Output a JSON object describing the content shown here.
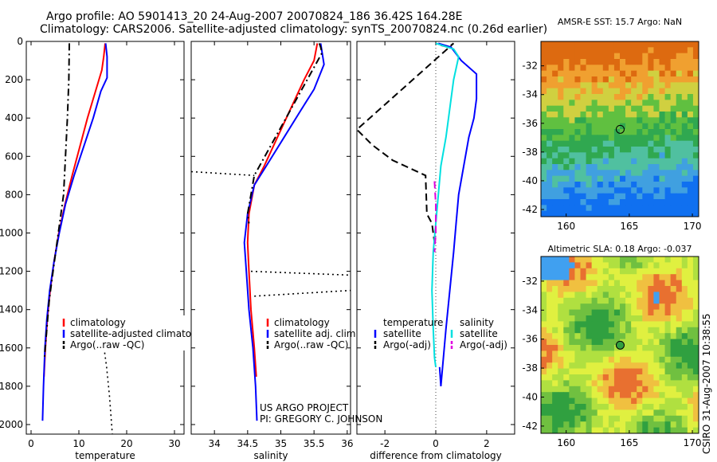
{
  "header": {
    "title_line1": "Argo profile: AO 5901413_20 24-Aug-2007 20070824_186 36.42S 164.28E",
    "title_line2": "Climatology: CARS2006. Satellite-adjusted climatology: synTS_20070824.nc (0.26d earlier)"
  },
  "credits": {
    "project": "US ARGO PROJECT",
    "pi": "PI: GREGORY C. JOHNSON",
    "side_stamp": "CSIRO 31-Aug-2007 10:38:55"
  },
  "chart_data": [
    {
      "id": "temperature",
      "type": "line",
      "xlabel": "temperature",
      "ylabel": "",
      "xlim": [
        -1,
        32
      ],
      "ylim": [
        2050,
        0
      ],
      "xticks": [
        0,
        10,
        20,
        30
      ],
      "yticks": [
        0,
        200,
        400,
        600,
        800,
        1000,
        1200,
        1400,
        1600,
        1800,
        2000
      ],
      "legend": {
        "placement": "lower-right",
        "entries": [
          "climatology",
          "satellite-adjusted climatolog",
          "Argo(..raw -QC)"
        ]
      },
      "series": [
        {
          "name": "climatology",
          "color": "#ff0000",
          "style": "solid",
          "points": [
            [
              15.5,
              10
            ],
            [
              15.2,
              80
            ],
            [
              14.8,
              150
            ],
            [
              13.6,
              250
            ],
            [
              11.8,
              400
            ],
            [
              10.2,
              550
            ],
            [
              8.6,
              700
            ],
            [
              7.1,
              850
            ],
            [
              5.8,
              1000
            ],
            [
              4.8,
              1150
            ],
            [
              4.0,
              1300
            ],
            [
              3.4,
              1450
            ],
            [
              3.0,
              1600
            ],
            [
              2.7,
              1750
            ]
          ]
        },
        {
          "name": "satellite-adjusted climatolog",
          "color": "#0000ff",
          "style": "solid",
          "points": [
            [
              15.6,
              10
            ],
            [
              15.9,
              80
            ],
            [
              15.9,
              190
            ],
            [
              14.6,
              260
            ],
            [
              13.0,
              400
            ],
            [
              11.0,
              550
            ],
            [
              9.0,
              700
            ],
            [
              7.2,
              850
            ],
            [
              5.9,
              1000
            ],
            [
              4.8,
              1150
            ],
            [
              3.9,
              1300
            ],
            [
              3.3,
              1450
            ],
            [
              2.9,
              1600
            ],
            [
              2.6,
              1800
            ],
            [
              2.4,
              1980
            ]
          ]
        },
        {
          "name": "Argo(..raw -QC)",
          "color": "#000000",
          "style": "dashdot",
          "points": [
            [
              8.0,
              10
            ],
            [
              7.9,
              200
            ],
            [
              7.6,
              400
            ],
            [
              7.2,
              600
            ],
            [
              6.8,
              800
            ],
            [
              5.7,
              1000
            ],
            [
              4.6,
              1200
            ],
            [
              3.8,
              1350
            ],
            [
              3.3,
              1500
            ],
            [
              2.8,
              1650
            ]
          ]
        },
        {
          "name": "",
          "color": "#000000",
          "style": "dotted",
          "points": [
            [
              15.0,
              1550
            ],
            [
              15.8,
              1700
            ],
            [
              16.4,
              1850
            ],
            [
              17.0,
              2050
            ]
          ]
        }
      ]
    },
    {
      "id": "salinity",
      "type": "line",
      "xlabel": "salinity",
      "ylabel": "",
      "xlim": [
        33.65,
        36.05
      ],
      "ylim": [
        2050,
        0
      ],
      "xticks": [
        34,
        34.5,
        35,
        35.5,
        36
      ],
      "xtick_labels": [
        "34",
        "34.5",
        "35",
        "35.5",
        "36"
      ],
      "legend": {
        "placement": "lower-right",
        "entries": [
          "climatology",
          "satellite adj. clim.",
          "Argo(..raw -QC)"
        ]
      },
      "series": [
        {
          "name": "climatology",
          "color": "#ff0000",
          "style": "solid",
          "points": [
            [
              35.55,
              10
            ],
            [
              35.5,
              100
            ],
            [
              35.35,
              200
            ],
            [
              35.15,
              350
            ],
            [
              34.95,
              500
            ],
            [
              34.75,
              650
            ],
            [
              34.6,
              750
            ],
            [
              34.52,
              900
            ],
            [
              34.5,
              1050
            ],
            [
              34.52,
              1200
            ],
            [
              34.55,
              1400
            ],
            [
              34.6,
              1600
            ],
            [
              34.63,
              1750
            ]
          ]
        },
        {
          "name": "satellite adj. clim.",
          "color": "#0000ff",
          "style": "solid",
          "points": [
            [
              35.6,
              10
            ],
            [
              35.65,
              120
            ],
            [
              35.5,
              250
            ],
            [
              35.3,
              360
            ],
            [
              35.05,
              500
            ],
            [
              34.8,
              640
            ],
            [
              34.6,
              750
            ],
            [
              34.5,
              900
            ],
            [
              34.45,
              1050
            ],
            [
              34.48,
              1200
            ],
            [
              34.52,
              1400
            ],
            [
              34.58,
              1600
            ],
            [
              34.62,
              1800
            ],
            [
              34.64,
              1980
            ]
          ]
        },
        {
          "name": "Argo(..raw -QC)",
          "color": "#000000",
          "style": "dashdot",
          "points": [
            [
              35.58,
              10
            ],
            [
              35.6,
              30
            ],
            [
              35.62,
              60
            ],
            [
              34.6,
              700
            ],
            [
              34.55,
              800
            ],
            [
              34.5,
              900
            ],
            [
              34.52,
              950
            ]
          ]
        },
        {
          "name": "",
          "color": "#000000",
          "style": "dotted",
          "points": [
            [
              33.65,
              680
            ],
            [
              34.6,
              700
            ]
          ]
        },
        {
          "name": "",
          "color": "#000000",
          "style": "dotted",
          "points": [
            [
              34.55,
              1200
            ],
            [
              36.05,
              1220
            ]
          ]
        },
        {
          "name": "",
          "color": "#000000",
          "style": "dotted",
          "points": [
            [
              34.6,
              1330
            ],
            [
              36.05,
              1300
            ]
          ]
        }
      ]
    },
    {
      "id": "difference",
      "type": "line",
      "xlabel": "difference from climatology",
      "ylabel": "",
      "xlim": [
        -3.1,
        3.1
      ],
      "ylim": [
        2050,
        0
      ],
      "xticks": [
        -2,
        0,
        2
      ],
      "zero_line": true,
      "legend": {
        "placement": "lower-right",
        "groups": [
          {
            "title": "temperature",
            "entries": [
              "satellite",
              "Argo(-adj)"
            ]
          },
          {
            "title": "salinity",
            "entries": [
              "satellite",
              "Argo(-adj)"
            ]
          }
        ]
      },
      "series": [
        {
          "name": "temperature satellite",
          "color": "#0000ff",
          "style": "solid",
          "points": [
            [
              0.1,
              10
            ],
            [
              0.6,
              30
            ],
            [
              1.0,
              100
            ],
            [
              1.6,
              170
            ],
            [
              1.6,
              300
            ],
            [
              1.5,
              400
            ],
            [
              1.3,
              500
            ],
            [
              1.1,
              650
            ],
            [
              0.9,
              800
            ],
            [
              0.8,
              950
            ],
            [
              0.7,
              1100
            ],
            [
              0.55,
              1300
            ],
            [
              0.4,
              1500
            ],
            [
              0.3,
              1650
            ],
            [
              0.2,
              1800
            ],
            [
              0.15,
              1700
            ]
          ]
        },
        {
          "name": "temperature Argo(-adj)",
          "color": "#000000",
          "style": "dashed",
          "points": [
            [
              0.2,
              20
            ],
            [
              0.5,
              30
            ],
            [
              0.7,
              10
            ],
            [
              -3.1,
              460
            ],
            [
              -2.5,
              540
            ],
            [
              -1.7,
              620
            ],
            [
              -0.4,
              700
            ],
            [
              -0.35,
              900
            ],
            [
              -0.15,
              950
            ],
            [
              -0.1,
              1000
            ],
            [
              -0.05,
              1050
            ]
          ]
        },
        {
          "name": "salinity satellite",
          "color": "#00e0e0",
          "style": "solid",
          "points": [
            [
              0.0,
              10
            ],
            [
              0.7,
              40
            ],
            [
              0.9,
              80
            ],
            [
              0.7,
              200
            ],
            [
              0.6,
              300
            ],
            [
              0.5,
              400
            ],
            [
              0.4,
              500
            ],
            [
              0.2,
              650
            ],
            [
              0.1,
              800
            ],
            [
              0.0,
              950
            ],
            [
              -0.1,
              1100
            ],
            [
              -0.15,
              1300
            ],
            [
              -0.1,
              1500
            ],
            [
              -0.05,
              1650
            ],
            [
              0.0,
              1700
            ]
          ]
        },
        {
          "name": "salinity Argo(-adj)",
          "color": "#e000e0",
          "style": "dashed",
          "points": [
            [
              -0.05,
              730
            ],
            [
              0.0,
              850
            ],
            [
              0.0,
              1000
            ],
            [
              -0.05,
              1100
            ]
          ]
        }
      ]
    },
    {
      "id": "sst-map",
      "type": "heatmap",
      "title": "AMSR-E SST: 15.7 Argo: NaN",
      "xlim": [
        158,
        170.5
      ],
      "ylim": [
        -42.5,
        -30.3
      ],
      "xticks": [
        160,
        165,
        170
      ],
      "yticks": [
        -32,
        -34,
        -36,
        -38,
        -40,
        -42
      ],
      "marker": {
        "lon": 164.28,
        "lat": -36.42
      },
      "colors": [
        "#dd6a10",
        "#f0a030",
        "#d0d040",
        "#60c040",
        "#30a850",
        "#50c0a0",
        "#40a0e0",
        "#1070f0"
      ]
    },
    {
      "id": "sla-map",
      "type": "heatmap",
      "title": "Altimetric SLA: 0.18 Argo: -0.037",
      "xlim": [
        158,
        170.5
      ],
      "ylim": [
        -42.5,
        -30.3
      ],
      "xticks": [
        160,
        165,
        170
      ],
      "yticks": [
        -32,
        -34,
        -36,
        -38,
        -40,
        -42
      ],
      "marker": {
        "lon": 164.28,
        "lat": -36.42
      },
      "colors": [
        "#30a040",
        "#70c040",
        "#b0e040",
        "#e0f040",
        "#f0c040",
        "#e87030",
        "#40a0f0"
      ]
    }
  ]
}
